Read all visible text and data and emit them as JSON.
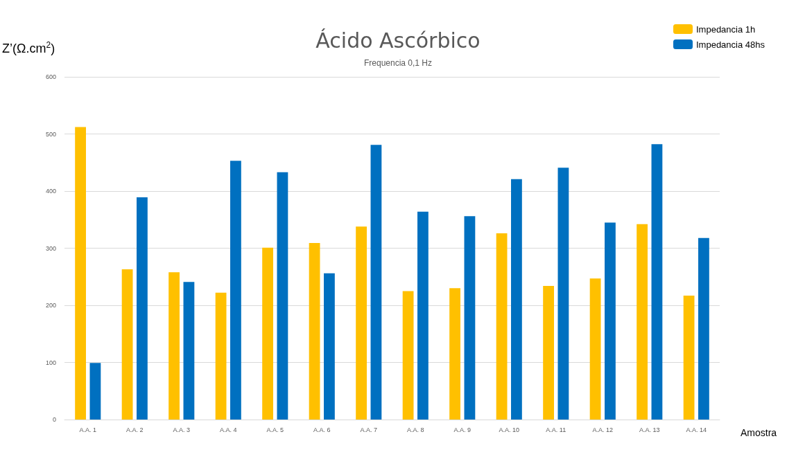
{
  "chart_data": {
    "type": "bar",
    "title": "Ácido Ascórbico",
    "subtitle": "Frequencia 0,1 Hz",
    "xlabel": "Amostra",
    "ylabel": "Z’(Ω.cm$^{2}$)",
    "categories": [
      "A.A. 1",
      "A.A. 2",
      "A.A. 3",
      "A.A. 4",
      "A.A. 5",
      "A.A. 6",
      "A.A. 7",
      "A.A. 8",
      "A.A. 9",
      "A.A. 10",
      "A.A. 11",
      "A.A. 12",
      "A.A. 13",
      "A.A. 14"
    ],
    "series": [
      {
        "name": "Impedancia 1h",
        "color": "#ffc000",
        "values": [
          512,
          263,
          258,
          222,
          301,
          309,
          338,
          225,
          230,
          326,
          234,
          247,
          342,
          217
        ]
      },
      {
        "name": "Impedancia 48hs",
        "color": "#0070c0",
        "values": [
          99,
          389,
          241,
          453,
          433,
          256,
          481,
          364,
          356,
          421,
          441,
          345,
          482,
          318
        ]
      }
    ],
    "ylim": [
      0,
      600
    ],
    "yticks": [
      0,
      100,
      200,
      300,
      400,
      500,
      600
    ],
    "grid": "y",
    "legend": "top right"
  }
}
